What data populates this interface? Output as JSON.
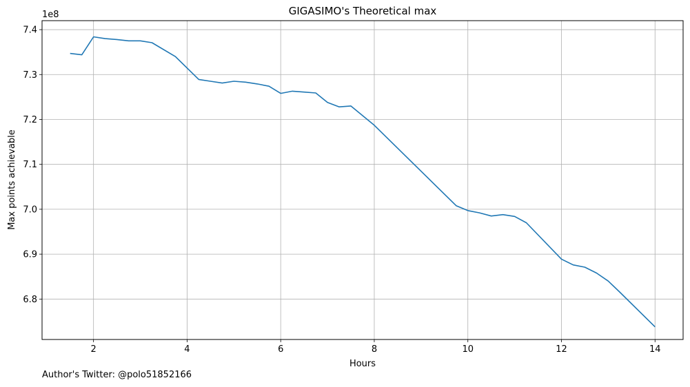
{
  "chart_data": {
    "type": "line",
    "title": "GIGASIMO's Theoretical max",
    "xlabel": "Hours",
    "ylabel": "Max points achievable",
    "y_offset_label": "1e8",
    "y_scale": 100000000,
    "xlim": [
      0.9,
      14.6
    ],
    "ylim": [
      6.71,
      7.42
    ],
    "x_ticks": [
      2,
      4,
      6,
      8,
      10,
      12,
      14
    ],
    "x_tick_labels": [
      "2",
      "4",
      "6",
      "8",
      "10",
      "12",
      "14"
    ],
    "y_ticks": [
      6.8,
      6.9,
      7.0,
      7.1,
      7.2,
      7.3,
      7.4
    ],
    "y_tick_labels": [
      "6.8",
      "6.9",
      "7.0",
      "7.1",
      "7.2",
      "7.3",
      "7.4"
    ],
    "grid": true,
    "series": [
      {
        "color": "#1f77b4",
        "x": [
          1.5,
          1.75,
          2.0,
          2.25,
          2.5,
          2.75,
          3.0,
          3.25,
          3.75,
          4.25,
          4.5,
          4.75,
          5.0,
          5.25,
          5.5,
          5.75,
          6.0,
          6.25,
          6.5,
          6.75,
          7.0,
          7.25,
          7.5,
          8.0,
          9.75,
          10.0,
          10.25,
          10.5,
          10.75,
          11.0,
          11.25,
          12.0,
          12.25,
          12.5,
          12.75,
          13.0,
          13.25,
          14.0
        ],
        "y": [
          7.347,
          7.344,
          7.384,
          7.38,
          7.378,
          7.375,
          7.375,
          7.371,
          7.34,
          7.289,
          7.285,
          7.281,
          7.285,
          7.283,
          7.279,
          7.274,
          7.258,
          7.263,
          7.261,
          7.259,
          7.238,
          7.228,
          7.23,
          7.187,
          7.008,
          6.997,
          6.992,
          6.985,
          6.988,
          6.984,
          6.97,
          6.889,
          6.876,
          6.871,
          6.858,
          6.84,
          6.815,
          6.738
        ]
      }
    ]
  },
  "footer": {
    "credit": "Author's Twitter: @polo51852166"
  }
}
